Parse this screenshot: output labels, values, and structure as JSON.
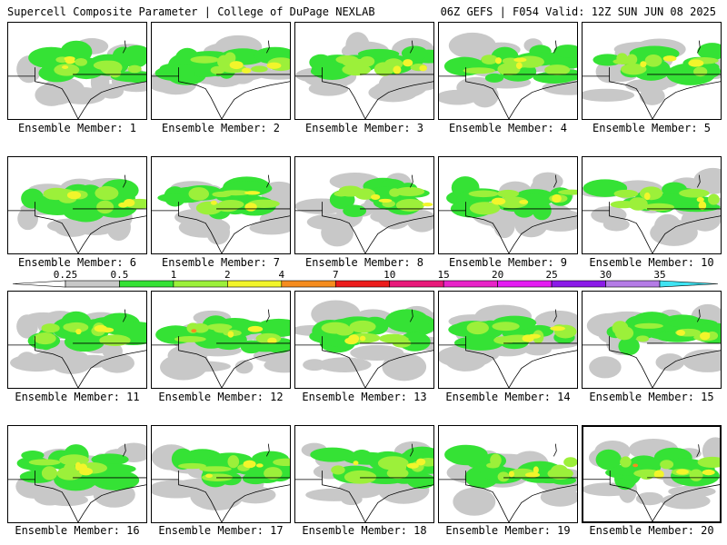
{
  "header": {
    "title_left": "Supercell Composite Parameter | College of DuPage NEXLAB",
    "title_right": "06Z GEFS | F054 Valid: 12Z SUN JUN 08 2025"
  },
  "colors": {
    "c025": "#c8c8c8",
    "c05": "#35e235",
    "c1": "#9cf03a",
    "c2": "#f2f52b",
    "c4": "#f58c1e",
    "c7": "#ec1b1b",
    "c10": "#e8187a",
    "c15": "#e823c8",
    "c20": "#e41cf2",
    "c25": "#8b1ae8",
    "c30": "#b47be6",
    "c35": "#3fe3f2",
    "state_line": "#000000"
  },
  "legend": {
    "thresholds": [
      "0.25",
      "0.5",
      "1",
      "2",
      "4",
      "7",
      "10",
      "15",
      "20",
      "25",
      "30",
      "35"
    ]
  },
  "members": [
    {
      "label": "Ensemble Member: 1"
    },
    {
      "label": "Ensemble Member: 2"
    },
    {
      "label": "Ensemble Member: 3"
    },
    {
      "label": "Ensemble Member: 4"
    },
    {
      "label": "Ensemble Member: 5"
    },
    {
      "label": "Ensemble Member: 6"
    },
    {
      "label": "Ensemble Member: 7"
    },
    {
      "label": "Ensemble Member: 8"
    },
    {
      "label": "Ensemble Member: 9"
    },
    {
      "label": "Ensemble Member: 10"
    },
    {
      "label": "Ensemble Member: 11"
    },
    {
      "label": "Ensemble Member: 12"
    },
    {
      "label": "Ensemble Member: 13"
    },
    {
      "label": "Ensemble Member: 14"
    },
    {
      "label": "Ensemble Member: 15"
    },
    {
      "label": "Ensemble Member: 16"
    },
    {
      "label": "Ensemble Member: 17"
    },
    {
      "label": "Ensemble Member: 18"
    },
    {
      "label": "Ensemble Member: 19"
    },
    {
      "label": "Ensemble Member: 20",
      "selected": true
    }
  ]
}
